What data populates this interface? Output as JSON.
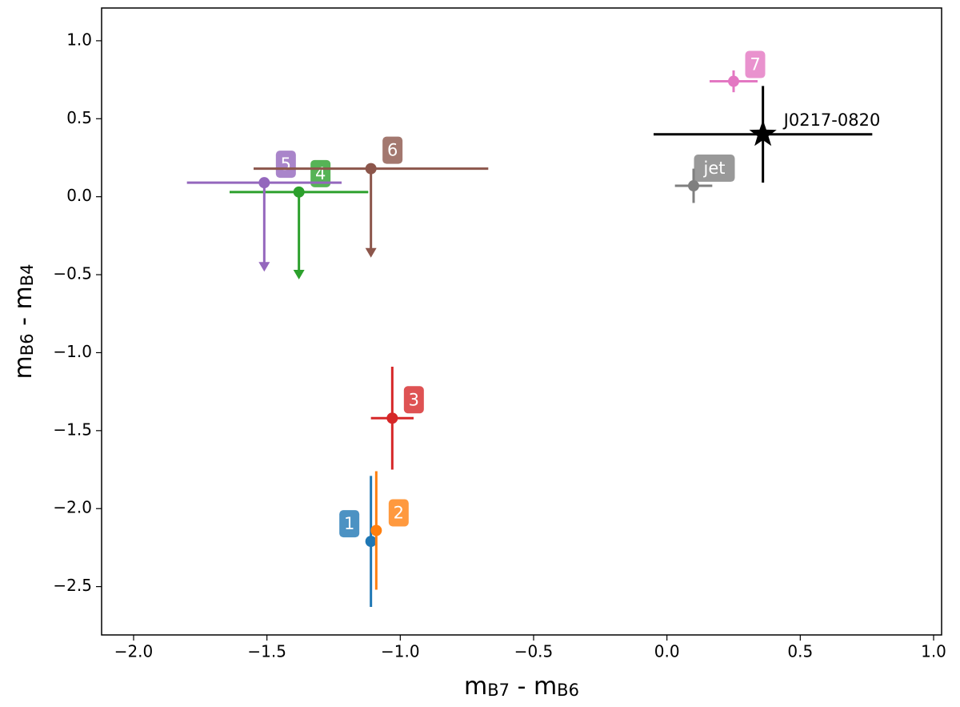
{
  "chart_data": {
    "type": "errorbar-scatter",
    "xlabel_parts": [
      "m",
      "B7",
      " - m",
      "B6"
    ],
    "ylabel_parts": [
      "m",
      "B6",
      " - m",
      "B4"
    ],
    "xlim": [
      -2.12,
      1.03
    ],
    "ylim": [
      -2.81,
      1.21
    ],
    "xticks": [
      {
        "value": -2.0,
        "label": "−2.0"
      },
      {
        "value": -1.5,
        "label": "−1.5"
      },
      {
        "value": -1.0,
        "label": "−1.0"
      },
      {
        "value": -0.5,
        "label": "−0.5"
      },
      {
        "value": 0.0,
        "label": "0.0"
      },
      {
        "value": 0.5,
        "label": "0.5"
      },
      {
        "value": 1.0,
        "label": "1.0"
      }
    ],
    "yticks": [
      {
        "value": -2.5,
        "label": "−2.5"
      },
      {
        "value": -2.0,
        "label": "−2.0"
      },
      {
        "value": -1.5,
        "label": "−1.5"
      },
      {
        "value": -1.0,
        "label": "−1.0"
      },
      {
        "value": -0.5,
        "label": "−0.5"
      },
      {
        "value": 0.0,
        "label": "0.0"
      },
      {
        "value": 0.5,
        "label": "0.5"
      },
      {
        "value": 1.0,
        "label": "1.0"
      }
    ],
    "series": [
      {
        "name": "1",
        "color": "#1f77b4",
        "marker": "circle",
        "uplims": false,
        "x": [
          -1.11
        ],
        "values": [
          -2.21
        ],
        "xerr": [
          null
        ],
        "yerr": [
          0.42
        ]
      },
      {
        "name": "2",
        "color": "#ff7f0e",
        "marker": "circle",
        "uplims": false,
        "x": [
          -1.09
        ],
        "values": [
          -2.14
        ],
        "xerr": [
          null
        ],
        "yerr": [
          0.38
        ]
      },
      {
        "name": "3",
        "color": "#d62728",
        "marker": "circle",
        "uplims": false,
        "x": [
          -1.03
        ],
        "values": [
          -1.42
        ],
        "xerr": [
          0.08
        ],
        "yerr": [
          0.33
        ]
      },
      {
        "name": "4",
        "color": "#2ca02c",
        "marker": "circle",
        "uplims": true,
        "x": [
          -1.38
        ],
        "values": [
          0.03
        ],
        "xerr": [
          0.26
        ],
        "yerr": [
          0.55
        ]
      },
      {
        "name": "5",
        "color": "#9467bd",
        "marker": "circle",
        "uplims": true,
        "x": [
          -1.51
        ],
        "values": [
          0.09
        ],
        "xerr": [
          0.29
        ],
        "yerr": [
          0.56
        ]
      },
      {
        "name": "6",
        "color": "#8c564b",
        "marker": "circle",
        "uplims": true,
        "x": [
          -1.11
        ],
        "values": [
          0.18
        ],
        "xerr": [
          0.44
        ],
        "yerr": [
          0.56
        ]
      },
      {
        "name": "7",
        "color": "#e377c2",
        "marker": "circle",
        "uplims": false,
        "x": [
          0.25
        ],
        "values": [
          0.74
        ],
        "xerr": [
          0.09
        ],
        "yerr": [
          0.07
        ]
      },
      {
        "name": "jet",
        "color": "#7f7f7f",
        "marker": "circle",
        "uplims": false,
        "x": [
          0.1
        ],
        "values": [
          0.07
        ],
        "xerr": [
          0.07
        ],
        "yerr": [
          0.11
        ]
      },
      {
        "name": "J0217-0820",
        "color": "#000000",
        "marker": "star",
        "uplims": false,
        "x": [
          0.36
        ],
        "values": [
          0.4
        ],
        "xerr": [
          0.41
        ],
        "yerr": [
          0.31
        ]
      }
    ]
  }
}
